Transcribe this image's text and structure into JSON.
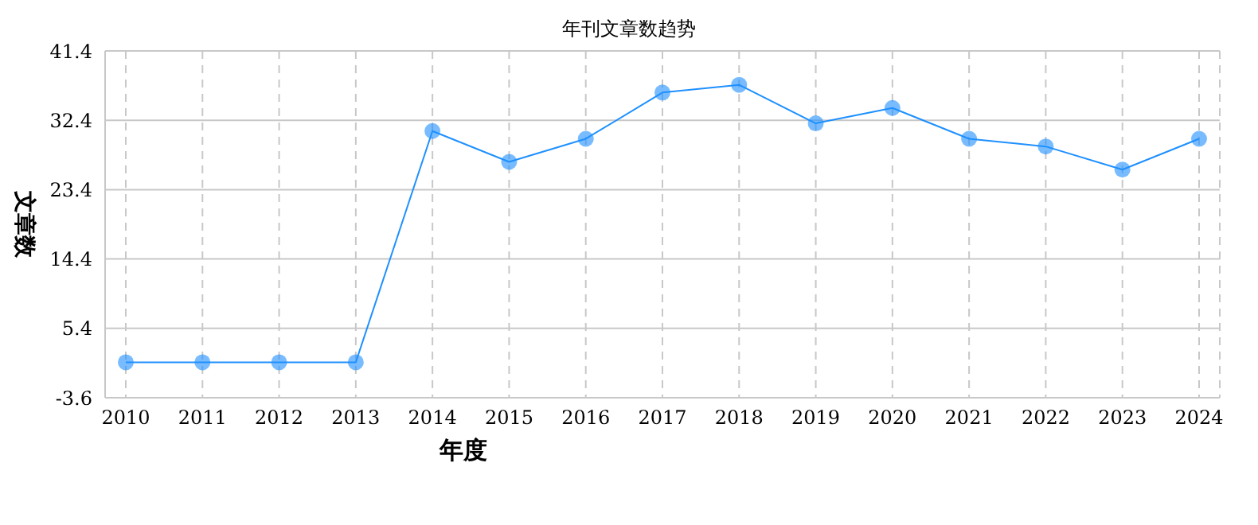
{
  "chart_data": {
    "type": "line",
    "title": "年刊文章数趋势",
    "xlabel": "年度",
    "ylabel": "文章数",
    "categories": [
      "2010",
      "2011",
      "2012",
      "2013",
      "2014",
      "2015",
      "2016",
      "2017",
      "2018",
      "2019",
      "2020",
      "2021",
      "2022",
      "2023",
      "2024"
    ],
    "series": [
      {
        "color": "#1e90ff",
        "values": [
          1,
          1,
          1,
          1,
          31,
          27,
          30,
          36,
          37,
          32,
          34,
          30,
          29,
          26,
          30
        ]
      }
    ],
    "ylim": [
      -3.6,
      41.4
    ],
    "yticks": [
      -3.6,
      5.4,
      14.4,
      23.4,
      32.4,
      41.4
    ],
    "grid": true,
    "legend": false,
    "marker": "circle",
    "line_style": "solid"
  }
}
